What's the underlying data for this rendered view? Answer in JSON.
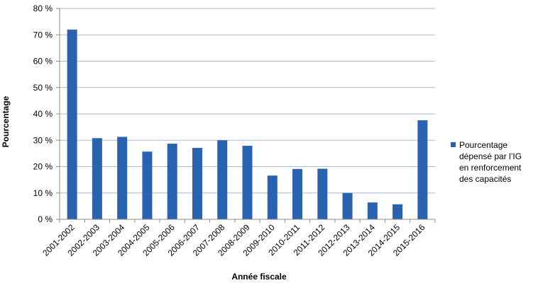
{
  "chart_data": {
    "type": "bar",
    "categories": [
      "2001-2002",
      "2002-2003",
      "2003-2004",
      "2004-2005",
      "2005-2006",
      "2006-2007",
      "2007-2008",
      "2008-2009",
      "2009-2010",
      "2010-2011",
      "2011-2012",
      "2012-2013",
      "2013-2014",
      "2014-2015",
      "2015-2016"
    ],
    "series": [
      {
        "name": "Pourcentage dépensé par l’IG en renforcement des capacités",
        "values": [
          72,
          30.8,
          31.3,
          25.7,
          28.7,
          27.1,
          30,
          27.9,
          16.6,
          19.1,
          19.2,
          10,
          6.4,
          5.7,
          37.6
        ],
        "color": "#2962AF"
      }
    ],
    "xlabel": "Année fiscale",
    "ylabel": "Pourcentage",
    "ylim": [
      0,
      80
    ],
    "y_ticks": [
      "0 %",
      "10 %",
      "20 %",
      "30 %",
      "40 %",
      "50 %",
      "60 %",
      "70 %",
      "80 %"
    ],
    "grid": true,
    "legend_position": "right",
    "legend_lines": [
      "Pourcentage",
      "dépensé par l’IG",
      "en renforcement",
      "des capacités"
    ],
    "gridline_color": "#A6BBD6"
  }
}
